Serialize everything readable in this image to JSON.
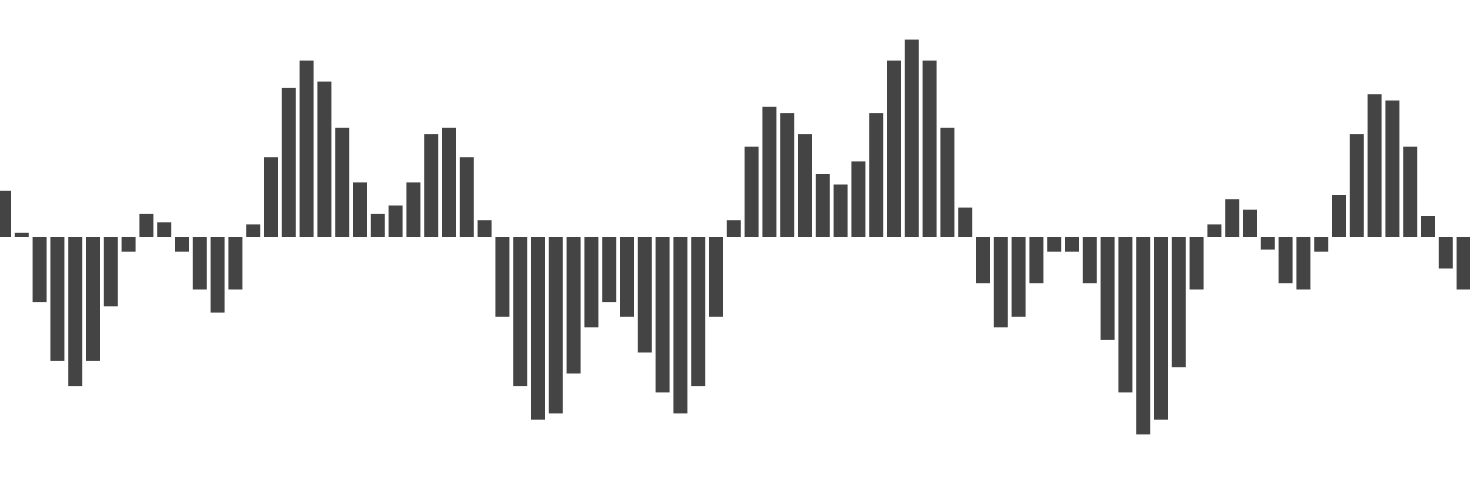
{
  "colors": {
    "background": "#ffffff",
    "bar": "#444444"
  },
  "chart_data": {
    "type": "bar",
    "title": "",
    "xlabel": "",
    "ylabel": "",
    "grid": false,
    "legend": "none",
    "ylim": [
      -1.0,
      1.0
    ],
    "values": [
      0.22,
      0.02,
      -0.31,
      -0.59,
      -0.71,
      -0.59,
      -0.33,
      -0.07,
      0.11,
      0.07,
      -0.07,
      -0.25,
      -0.36,
      -0.25,
      0.06,
      0.38,
      0.71,
      0.84,
      0.74,
      0.52,
      0.26,
      0.11,
      0.15,
      0.26,
      0.49,
      0.52,
      0.38,
      0.08,
      -0.38,
      -0.71,
      -0.87,
      -0.84,
      -0.65,
      -0.43,
      -0.31,
      -0.38,
      -0.55,
      -0.74,
      -0.84,
      -0.71,
      -0.38,
      0.08,
      0.43,
      0.62,
      0.59,
      0.49,
      0.3,
      0.25,
      0.36,
      0.59,
      0.84,
      0.94,
      0.84,
      0.52,
      0.14,
      -0.22,
      -0.43,
      -0.38,
      -0.22,
      -0.07,
      -0.07,
      -0.22,
      -0.49,
      -0.74,
      -0.94,
      -0.87,
      -0.62,
      -0.25,
      0.06,
      0.18,
      0.13,
      -0.06,
      -0.22,
      -0.25,
      -0.07,
      0.2,
      0.49,
      0.68,
      0.65,
      0.43,
      0.1,
      -0.15,
      -0.25
    ]
  }
}
